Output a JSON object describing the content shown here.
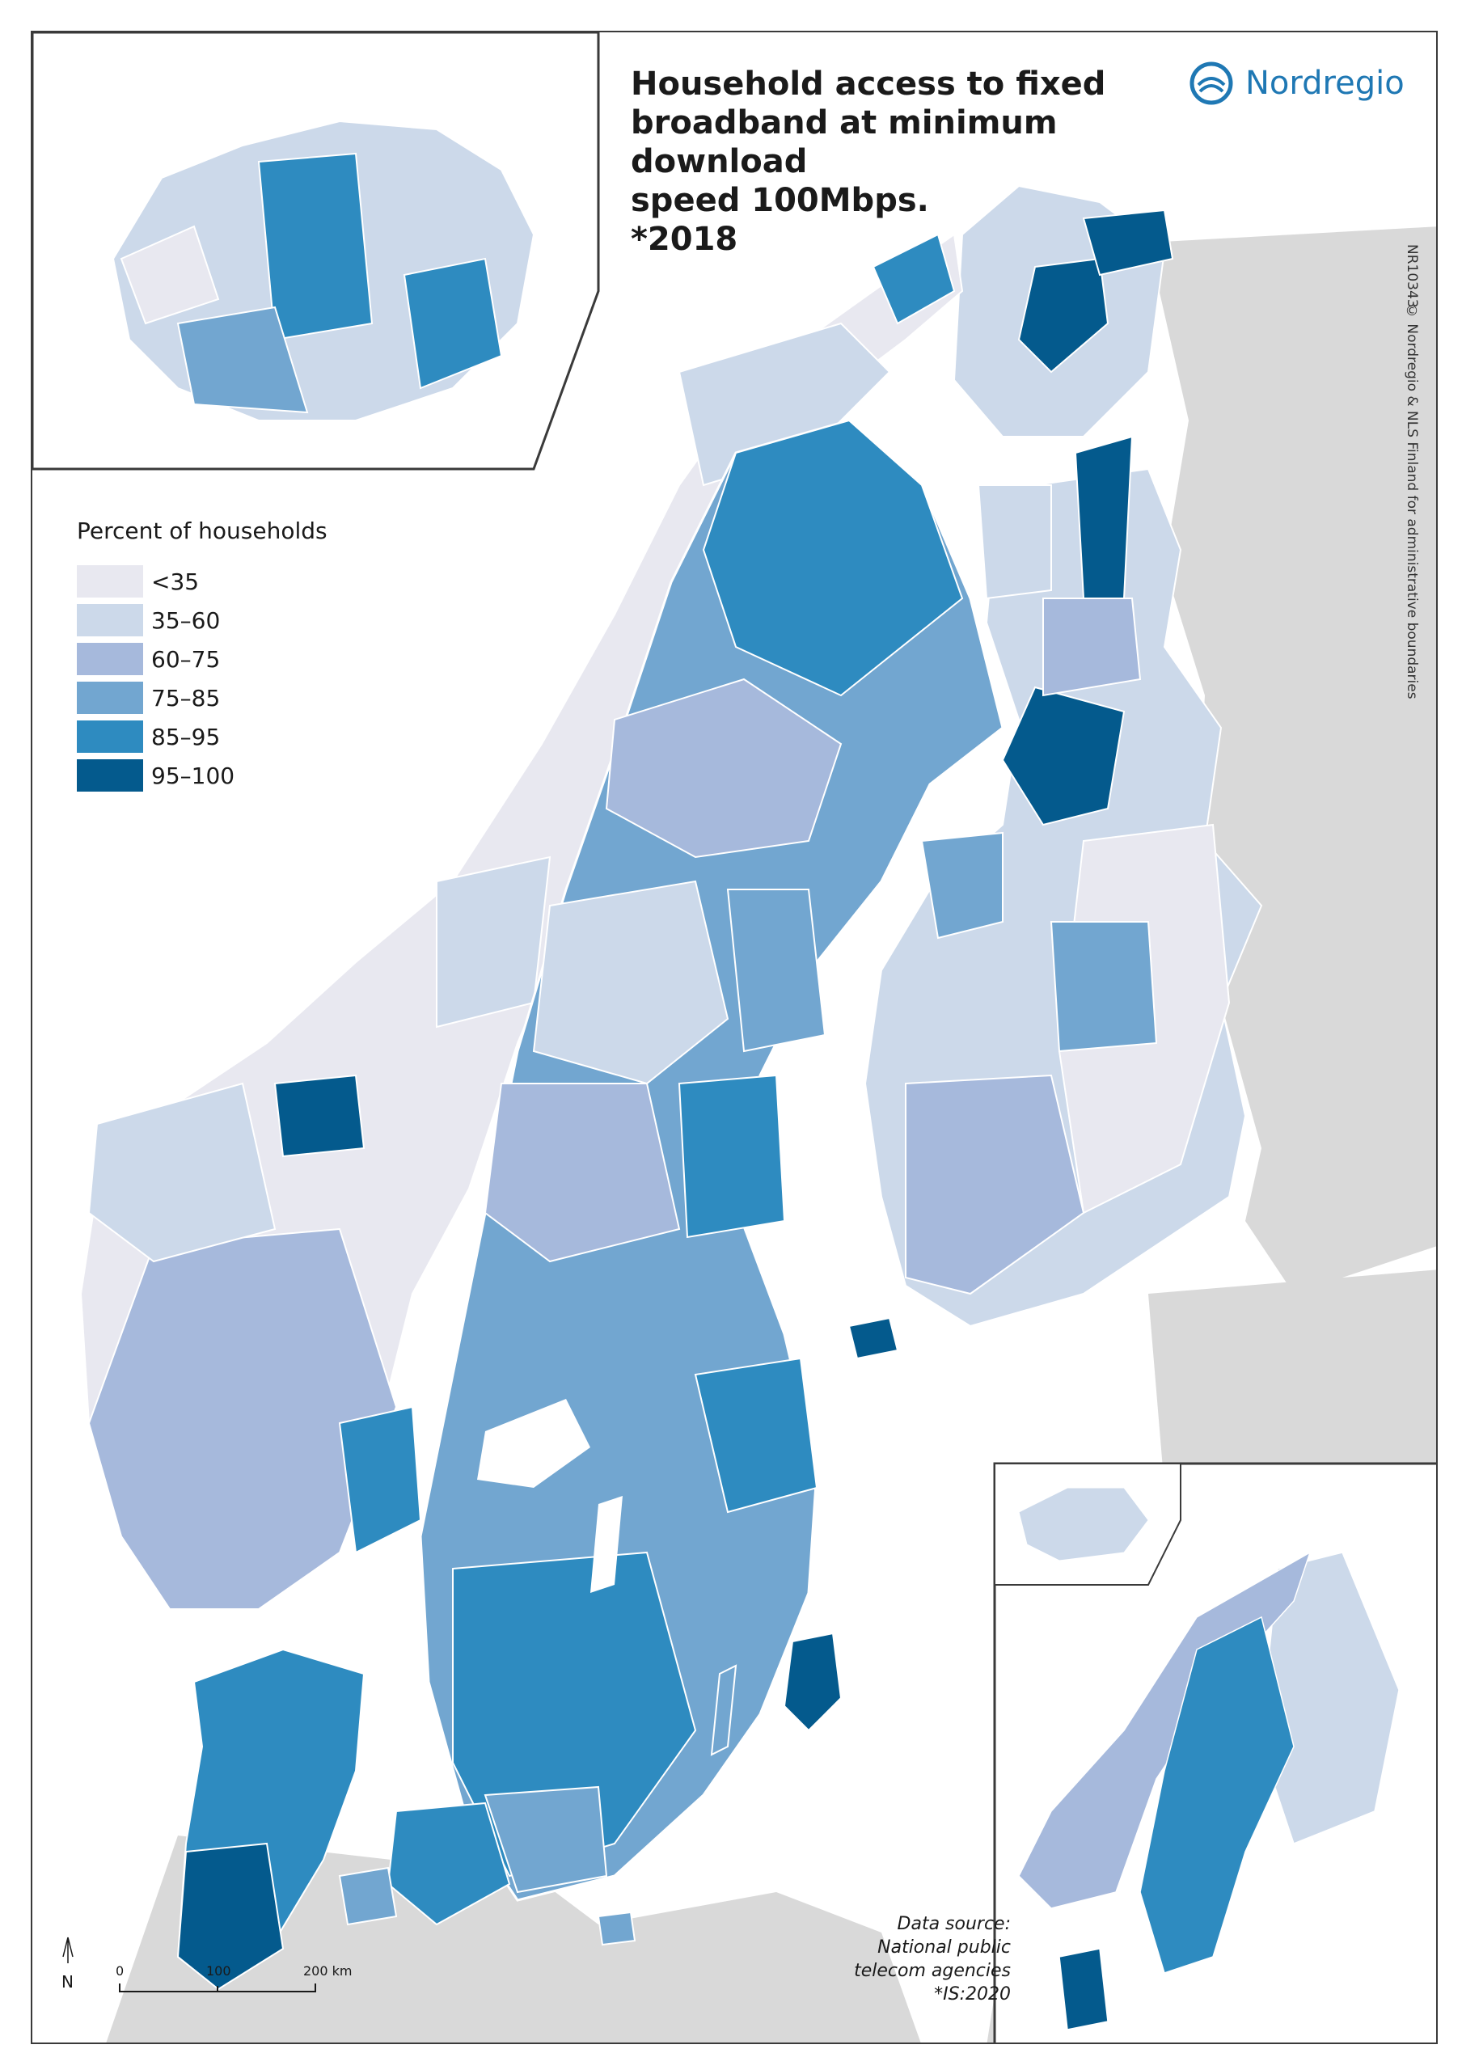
{
  "title_lines": [
    "Household access to fixed",
    "broadband at minimum download",
    "speed 100Mbps.",
    "*2018"
  ],
  "brand": {
    "name": "Nordregio"
  },
  "map_code": "NR10343",
  "copyright": "© Nordregio & NLS Finland for administrative boundaries",
  "legend": {
    "title": "Percent of households",
    "classes": [
      {
        "label": "<35",
        "color": "#e8e8f0"
      },
      {
        "label": "35–60",
        "color": "#ccd9ea"
      },
      {
        "label": "60–75",
        "color": "#a6b9dc"
      },
      {
        "label": "75–85",
        "color": "#72a6d0"
      },
      {
        "label": "85–95",
        "color": "#2e8bc0"
      },
      {
        "label": "95–100",
        "color": "#045a8d"
      }
    ]
  },
  "data_source": [
    "Data source:",
    "National public",
    "telecom agencies",
    "*IS:2020"
  ],
  "scale_bar": {
    "ticks": [
      "0",
      "100",
      "200 km"
    ],
    "north": "N"
  },
  "colors": {
    "background_land": "#d9d9d9",
    "sea": "#ffffff",
    "border": "#ffffff",
    "frame": "#3a3a3a"
  }
}
